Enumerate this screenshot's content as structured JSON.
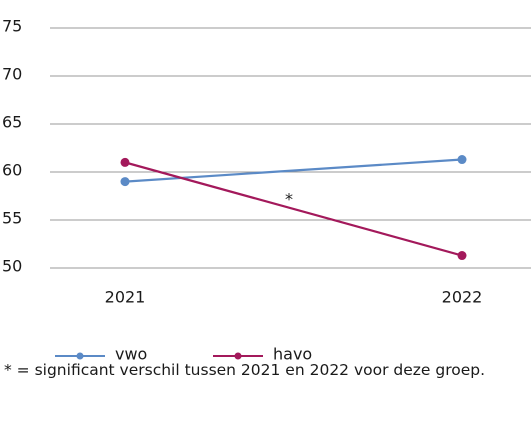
{
  "chart_data": {
    "type": "line",
    "categories": [
      "2021",
      "2022"
    ],
    "series": [
      {
        "name": "vwo",
        "color": "#5b8ac6",
        "values": [
          59.0,
          61.3
        ]
      },
      {
        "name": "havo",
        "color": "#a3195b",
        "values": [
          61.0,
          51.3
        ]
      }
    ],
    "ylim": [
      50,
      75
    ],
    "yticks": [
      50,
      55,
      60,
      65,
      70,
      75
    ],
    "grid": true,
    "annotations": [
      "*"
    ],
    "footnote": "* = significant verschil tussen 2021 en 2022 voor deze groep."
  }
}
